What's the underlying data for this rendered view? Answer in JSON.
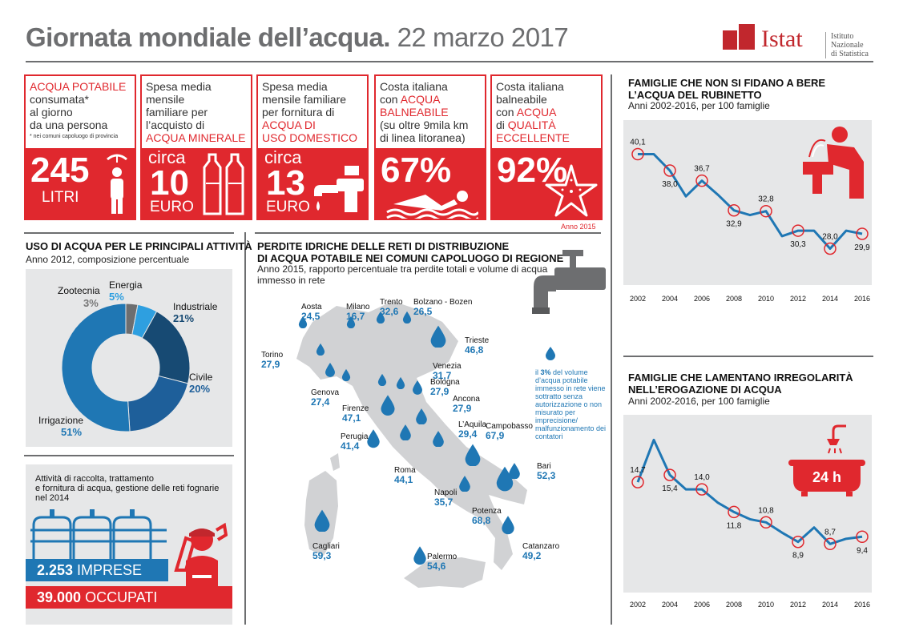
{
  "header": {
    "title_bold": "Giornata mondiale dell’acqua.",
    "title_date": " 22 marzo 2017",
    "logo_word": "Istat",
    "logo_sub1": "Istituto Nazionale",
    "logo_sub2": "di Statistica"
  },
  "colors": {
    "red": "#e0282e",
    "blue": "#1f77b4",
    "dark_blue": "#174a73",
    "mid_blue": "#1e5f9a",
    "light_blue": "#2e9fe0",
    "gray": "#6d6e70"
  },
  "cards": [
    {
      "l1": "ACQUA POTABILE",
      "l2": "consumata*",
      "l3": "al giorno",
      "l4": "da una persona",
      "note": "* nei comuni capoluogo di provincia",
      "big": "245",
      "small": "LITRI",
      "icon": "shower-person-icon"
    },
    {
      "l1": "Spesa media",
      "l2": "mensile",
      "l3": "familiare per",
      "l4": "l’acquisto di",
      "l5": "ACQUA MINERALE",
      "pre": "circa",
      "big": "10",
      "small": "EURO",
      "icon": "bottles-icon"
    },
    {
      "l1": "Spesa media",
      "l2": "mensile familiare",
      "l3": "per fornitura di",
      "l4": "ACQUA DI",
      "l5": "USO DOMESTICO",
      "pre": "circa",
      "big": "13",
      "small": "EURO",
      "icon": "faucet-icon"
    },
    {
      "l1": "Costa italiana",
      "l2": "con",
      "l2r": "ACQUA",
      "l3": "BALNEABILE",
      "l4": "(su oltre 9mila km",
      "l5": "di linea litoranea)",
      "big": "67%",
      "icon": "swimmer-icon"
    },
    {
      "l1": "Costa italiana",
      "l2": "balneabile",
      "l3": "con",
      "l3r": "ACQUA",
      "l4": "di",
      "l4r": "QUALITÀ",
      "l5": "ECCELLENTE",
      "big": "92%",
      "icon": "starfish-icon",
      "foot": "Anno 2015"
    }
  ],
  "uses": {
    "title": "USO DI ACQUA PER LE PRINCIPALI ATTIVITÀ",
    "subtitle": "Anno 2012, composizione percentuale",
    "slices": [
      {
        "label": "Industriale",
        "value": "21%"
      },
      {
        "label": "Civile",
        "value": "20%"
      },
      {
        "label": "Irrigazione",
        "value": "51%"
      },
      {
        "label": "Zootecnia",
        "value": "3%"
      },
      {
        "label": "Energia",
        "value": "5%"
      }
    ]
  },
  "chart_data": [
    {
      "type": "pie",
      "title": "USO DI ACQUA PER LE PRINCIPALI ATTIVITÀ",
      "categories": [
        "Industriale",
        "Civile",
        "Irrigazione",
        "Zootecnia",
        "Energia"
      ],
      "values": [
        21,
        20,
        51,
        3,
        5
      ]
    },
    {
      "type": "line",
      "title": "FAMIGLIE CHE NON SI FIDANO A BERE L’ACQUA DEL RUBINETTO",
      "x": [
        2002,
        2003,
        2004,
        2005,
        2006,
        2007,
        2008,
        2009,
        2010,
        2011,
        2012,
        2013,
        2014,
        2015,
        2016
      ],
      "values": [
        40.1,
        40.1,
        38.0,
        34.7,
        36.7,
        34.9,
        32.9,
        32.3,
        32.8,
        29.6,
        30.3,
        30.3,
        28.0,
        30.3,
        29.9
      ],
      "labelled_years": [
        2002,
        2004,
        2006,
        2008,
        2010,
        2012,
        2014,
        2016
      ],
      "labels": [
        "40,1",
        "38,0",
        "36,7",
        "32,9",
        "32,8",
        "30,3",
        "28,0",
        "29,9"
      ],
      "xticks": [
        "2002",
        "2004",
        "2006",
        "2008",
        "2010",
        "2012",
        "2014",
        "2016"
      ],
      "ylim": [
        26,
        42
      ]
    },
    {
      "type": "line",
      "title": "FAMIGLIE CHE LAMENTANO IRREGOLARITÀ NELL’EROGAZIONE DI ACQUA",
      "x": [
        2002,
        2003,
        2004,
        2005,
        2006,
        2007,
        2008,
        2009,
        2010,
        2011,
        2012,
        2013,
        2014,
        2015,
        2016
      ],
      "values": [
        14.7,
        18.8,
        15.4,
        14.0,
        14.0,
        12.7,
        11.8,
        11.1,
        10.8,
        9.8,
        8.9,
        10.3,
        8.7,
        9.2,
        9.4
      ],
      "labelled_years": [
        2002,
        2004,
        2006,
        2008,
        2010,
        2012,
        2014,
        2016
      ],
      "labels": [
        "14,7",
        "15,4",
        "14,0",
        "11,8",
        "10,8",
        "8,9",
        "8,7",
        "9,4"
      ],
      "xticks": [
        "2002",
        "2004",
        "2006",
        "2008",
        "2010",
        "2012",
        "2014",
        "2016"
      ],
      "ylim": [
        6,
        20
      ]
    }
  ],
  "work": {
    "text1": "Attività di raccolta, trattamento",
    "text2": "e fornitura di acqua, gestione delle reti fognarie",
    "text3": "nel 2014",
    "imprese_n": "2.253",
    "imprese_l": " IMPRESE",
    "occupati_n": "39.000",
    "occupati_l": " OCCUPATI"
  },
  "losses": {
    "title1": "PERDITE IDRICHE DELLE RETI DI DISTRIBUZIONE",
    "title2": "DI ACQUA POTABILE NEI COMUNI CAPOLUOGO DI REGIONE",
    "sub1": "Anno 2015, rapporto percentuale tra perdite totali e volume di acqua",
    "sub2": "immesso in rete",
    "note1": "il",
    "note_pct": "3%",
    "note2": "del volume d’acqua potabile immesso in rete viene sottratto senza autorizzazione o non misurato per imprecisione/ malfunzionamento dei contatori",
    "cities": [
      {
        "name": "Aosta",
        "value": "24,5"
      },
      {
        "name": "Milano",
        "value": "16,7"
      },
      {
        "name": "Trento",
        "value": "32,6"
      },
      {
        "name": "Bolzano - Bozen",
        "value": "26,5"
      },
      {
        "name": "Trieste",
        "value": "46,8"
      },
      {
        "name": "Torino",
        "value": "27,9"
      },
      {
        "name": "Venezia",
        "value": "31,7"
      },
      {
        "name": "Bologna",
        "value": "27,9"
      },
      {
        "name": "Genova",
        "value": "27,4"
      },
      {
        "name": "Ancona",
        "value": "27,9"
      },
      {
        "name": "Firenze",
        "value": "47,1"
      },
      {
        "name": "L’Aquila",
        "value": "29,4"
      },
      {
        "name": "Perugia",
        "value": "41,4"
      },
      {
        "name": "Campobasso",
        "value": "67,9"
      },
      {
        "name": "Bari",
        "value": "52,3"
      },
      {
        "name": "Roma",
        "value": "44,1"
      },
      {
        "name": "Napoli",
        "value": "35,7"
      },
      {
        "name": "Potenza",
        "value": "68,8"
      },
      {
        "name": "Cagliari",
        "value": "59,3"
      },
      {
        "name": "Catanzaro",
        "value": "49,2"
      },
      {
        "name": "Palermo",
        "value": "54,6"
      }
    ]
  },
  "trust": {
    "title1": "FAMIGLIE CHE NON SI FIDANO A BERE",
    "title2": "L’ACQUA DEL RUBINETTO",
    "sub": "Anni 2002-2016, per 100 famiglie"
  },
  "irreg": {
    "title1": "FAMIGLIE CHE LAMENTANO IRREGOLARITÀ",
    "title2": "NELL’EROGAZIONE DI ACQUA",
    "sub": "Anni 2002-2016, per 100 famiglie",
    "badge": "24 h"
  }
}
